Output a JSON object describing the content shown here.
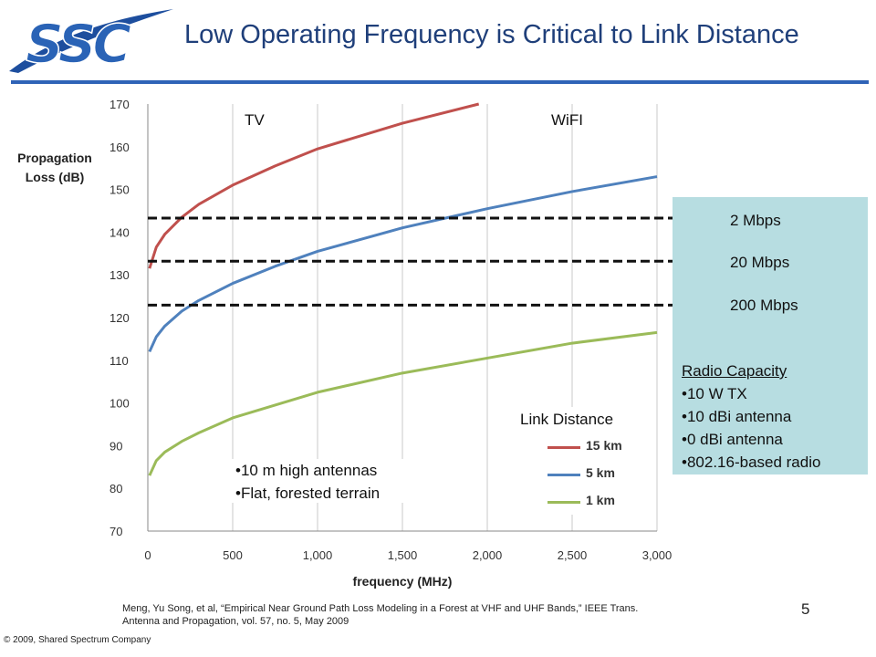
{
  "header": {
    "logo_text": "SSC",
    "title": "Low Operating Frequency is Critical to Link Distance"
  },
  "colors": {
    "brand_blue": "#2a63b6",
    "rule": "#2f63b7",
    "series_15km": "#c0504d",
    "series_5km": "#4f81bd",
    "series_1km": "#9bbb59",
    "capacity_box": "#b7dde1"
  },
  "chart_data": {
    "type": "line",
    "xlabel": "frequency (MHz)",
    "ylabel": "Propagation Loss (dB)",
    "xlim": [
      0,
      3000
    ],
    "ylim": [
      70,
      170
    ],
    "x_ticks": [
      "0",
      "500",
      "1,000",
      "1,500",
      "2,000",
      "2,500",
      "3,000"
    ],
    "y_ticks": [
      "70",
      "80",
      "90",
      "100",
      "110",
      "120",
      "130",
      "140",
      "150",
      "160",
      "170"
    ],
    "grid": "vertical",
    "series": [
      {
        "name": "15 km",
        "x": [
          10,
          50,
          100,
          200,
          300,
          500,
          750,
          1000,
          1500,
          1950
        ],
        "values": [
          131.5,
          136.5,
          139.5,
          143.5,
          146.5,
          151,
          155.5,
          159.5,
          165.5,
          170
        ]
      },
      {
        "name": "5 km",
        "x": [
          10,
          50,
          100,
          200,
          300,
          500,
          750,
          1000,
          1500,
          2000,
          2500,
          3000
        ],
        "values": [
          112,
          115.5,
          118,
          121.5,
          124,
          128,
          132,
          135.5,
          141,
          145.5,
          149.5,
          153
        ]
      },
      {
        "name": "1 km",
        "x": [
          10,
          50,
          100,
          200,
          300,
          500,
          750,
          1000,
          1500,
          2000,
          2500,
          3000
        ],
        "values": [
          83,
          86.5,
          88.5,
          91,
          93,
          96.5,
          99.5,
          102.5,
          107,
          110.5,
          114,
          116.5
        ]
      }
    ],
    "thresholds": [
      {
        "label": "2 Mbps",
        "value": 143.3
      },
      {
        "label": "20 Mbps",
        "value": 133.2
      },
      {
        "label": "200 Mbps",
        "value": 122.9
      }
    ],
    "region_labels": [
      "TV",
      "WiFI"
    ],
    "legend_title": "Link Distance"
  },
  "radio_capacity": {
    "title": "Radio Capacity",
    "items": [
      "•10 W TX",
      "•10 dBi antenna",
      "•0 dBi antenna",
      "•802.16-based radio"
    ]
  },
  "conditions": [
    "•10 m high antennas",
    "•Flat, forested terrain"
  ],
  "footer": {
    "reference": " Meng, Yu Song, et al, “Empirical Near Ground Path Loss Modeling in a Forest at VHF and UHF Bands,” IEEE Trans. Antenna and Propagation, vol. 57, no. 5, May 2009",
    "copyright": "© 2009, Shared Spectrum Company",
    "page_number": "5"
  }
}
